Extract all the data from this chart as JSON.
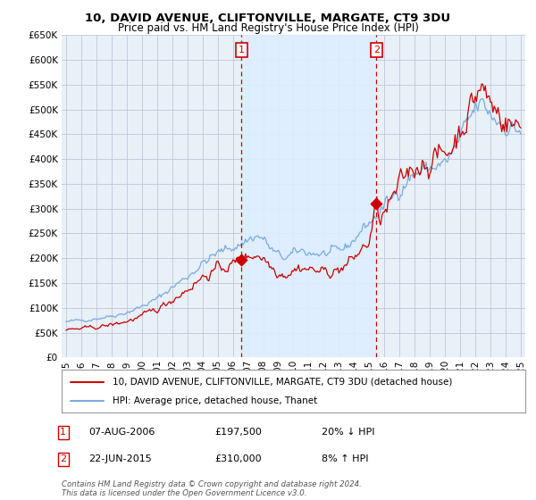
{
  "title1": "10, DAVID AVENUE, CLIFTONVILLE, MARGATE, CT9 3DU",
  "title2": "Price paid vs. HM Land Registry's House Price Index (HPI)",
  "legend_line1": "10, DAVID AVENUE, CLIFTONVILLE, MARGATE, CT9 3DU (detached house)",
  "legend_line2": "HPI: Average price, detached house, Thanet",
  "annotation1_label": "1",
  "annotation1_date": "07-AUG-2006",
  "annotation1_price": "£197,500",
  "annotation1_hpi": "20% ↓ HPI",
  "annotation2_label": "2",
  "annotation2_date": "22-JUN-2015",
  "annotation2_price": "£310,000",
  "annotation2_hpi": "8% ↑ HPI",
  "footnote": "Contains HM Land Registry data © Crown copyright and database right 2024.\nThis data is licensed under the Open Government Licence v3.0.",
  "hpi_color": "#7aaadd",
  "price_color": "#cc0000",
  "annotation_box_color": "#cc0000",
  "vline_color": "#cc0000",
  "chart_bg_color": "#e8f0f8",
  "highlight_bg_color": "#ddeeff",
  "ylim": [
    0,
    650000
  ],
  "yticks": [
    0,
    50000,
    100000,
    150000,
    200000,
    250000,
    300000,
    350000,
    400000,
    450000,
    500000,
    550000,
    600000,
    650000
  ],
  "sale1_x": 2006.58,
  "sale1_y": 197500,
  "sale2_x": 2015.47,
  "sale2_y": 310000,
  "xlim_left": 1994.7,
  "xlim_right": 2025.3
}
